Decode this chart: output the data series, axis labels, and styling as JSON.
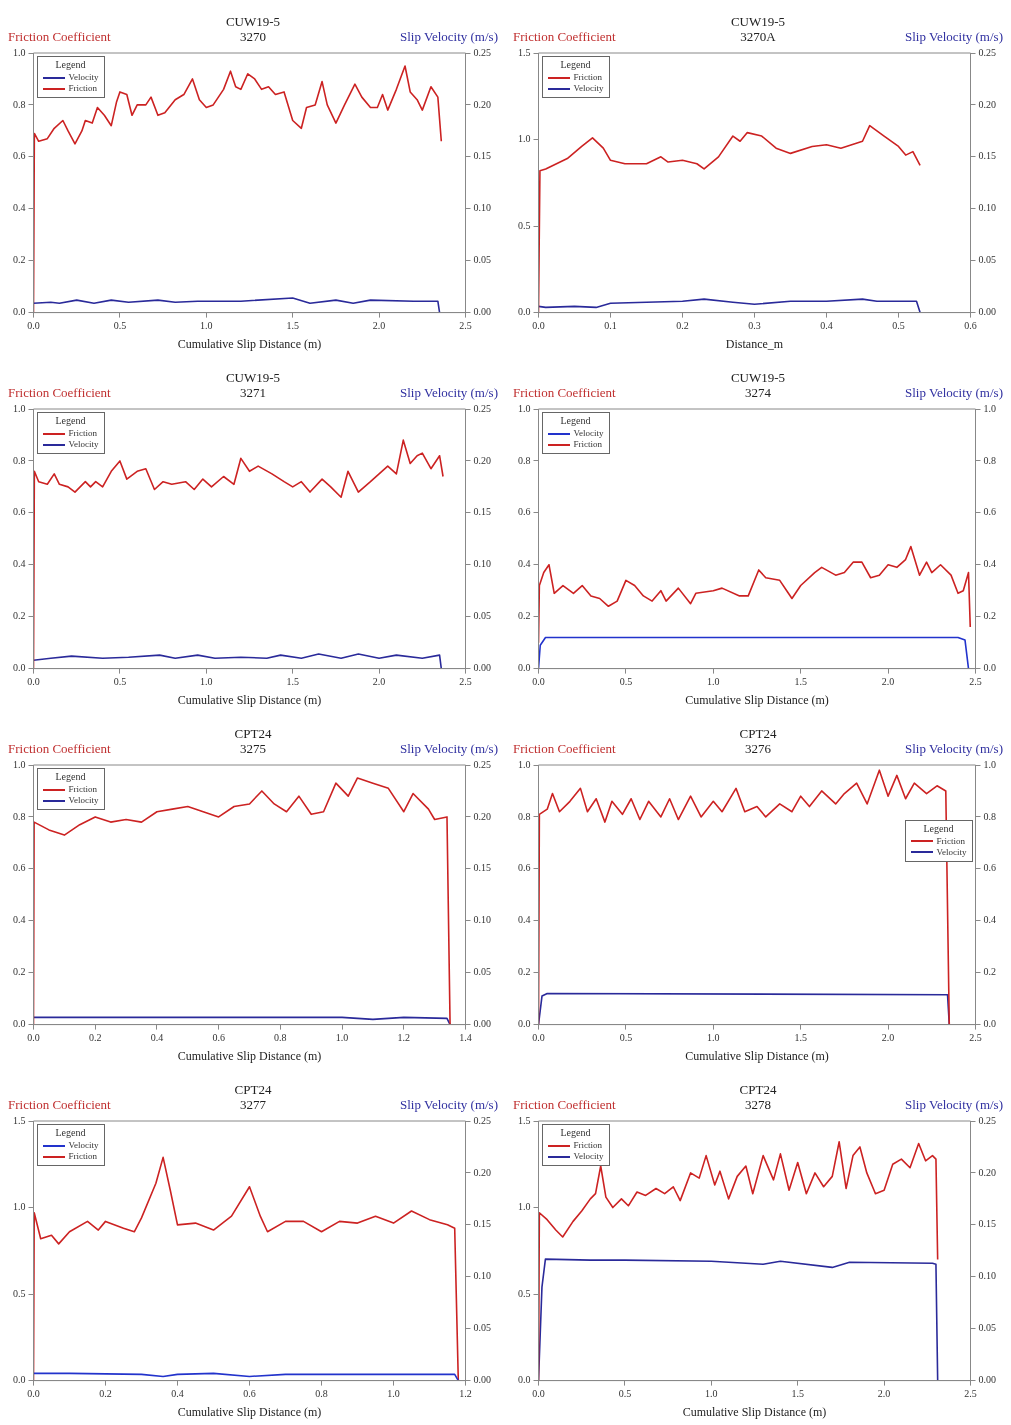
{
  "chart_data": [
    {
      "type": "line",
      "title": "CUW19-5",
      "subtitle": "3270",
      "xlabel": "Cumulative Slip Distance (m)",
      "ylabel": "Friction Coefficient",
      "y2label": "Slip Velocity (m/s)",
      "legend_title": "Legend",
      "legend": "top left",
      "xlim": [
        0,
        2.5
      ],
      "xticks": [
        {
          "value": 0,
          "label": "0.0"
        },
        {
          "value": 0.5,
          "label": "0.5"
        },
        {
          "value": 1,
          "label": "1.0"
        },
        {
          "value": 1.5,
          "label": "1.5"
        },
        {
          "value": 2,
          "label": "2.0"
        },
        {
          "value": 2.5,
          "label": "2.5"
        }
      ],
      "ylim": [
        0,
        1
      ],
      "yticks": [
        {
          "value": 0,
          "label": "0.0"
        },
        {
          "value": 0.2,
          "label": "0.2"
        },
        {
          "value": 0.4,
          "label": "0.4"
        },
        {
          "value": 0.6,
          "label": "0.6"
        },
        {
          "value": 0.8,
          "label": "0.8"
        },
        {
          "value": 1,
          "label": "1.0"
        }
      ],
      "y2lim": [
        0,
        0.25
      ],
      "y2ticks": [
        {
          "value": 0,
          "label": "0.00"
        },
        {
          "value": 0.05,
          "label": "0.05"
        },
        {
          "value": 0.1,
          "label": "0.10"
        },
        {
          "value": 0.15,
          "label": "0.15"
        },
        {
          "value": 0.2,
          "label": "0.20"
        },
        {
          "value": 0.25,
          "label": "0.25"
        }
      ],
      "series": [
        {
          "name": "Velocity",
          "color": "#2a2a9a",
          "axis": "y2",
          "x": [
            0,
            0.1,
            0.15,
            0.25,
            0.35,
            0.45,
            0.55,
            0.72,
            0.82,
            0.95,
            1.2,
            1.5,
            1.6,
            1.75,
            1.85,
            1.95,
            2.2,
            2.34,
            2.35
          ],
          "values": [
            0.009,
            0.01,
            0.009,
            0.012,
            0.009,
            0.012,
            0.01,
            0.012,
            0.01,
            0.011,
            0.011,
            0.014,
            0.009,
            0.012,
            0.009,
            0.012,
            0.011,
            0.011,
            0
          ]
        },
        {
          "name": "Friction",
          "color": "#cc2222",
          "axis": "y",
          "x": [
            0,
            0.005,
            0.03,
            0.08,
            0.12,
            0.17,
            0.2,
            0.24,
            0.28,
            0.3,
            0.34,
            0.37,
            0.41,
            0.45,
            0.48,
            0.5,
            0.54,
            0.57,
            0.6,
            0.65,
            0.68,
            0.72,
            0.76,
            0.82,
            0.87,
            0.92,
            0.96,
            1.0,
            1.04,
            1.1,
            1.14,
            1.17,
            1.2,
            1.24,
            1.28,
            1.32,
            1.36,
            1.4,
            1.45,
            1.5,
            1.55,
            1.58,
            1.63,
            1.67,
            1.7,
            1.75,
            1.8,
            1.86,
            1.9,
            1.95,
            1.99,
            2.02,
            2.05,
            2.1,
            2.15,
            2.18,
            2.22,
            2.25,
            2.3,
            2.34,
            2.36
          ],
          "values": [
            0,
            0.69,
            0.66,
            0.67,
            0.71,
            0.74,
            0.7,
            0.65,
            0.7,
            0.74,
            0.73,
            0.79,
            0.76,
            0.72,
            0.81,
            0.85,
            0.84,
            0.76,
            0.8,
            0.8,
            0.83,
            0.76,
            0.77,
            0.82,
            0.84,
            0.9,
            0.82,
            0.79,
            0.8,
            0.86,
            0.93,
            0.87,
            0.86,
            0.92,
            0.9,
            0.86,
            0.87,
            0.84,
            0.85,
            0.74,
            0.71,
            0.79,
            0.8,
            0.89,
            0.8,
            0.73,
            0.8,
            0.88,
            0.83,
            0.79,
            0.79,
            0.84,
            0.78,
            0.86,
            0.95,
            0.85,
            0.82,
            0.78,
            0.87,
            0.83,
            0.66
          ]
        }
      ]
    },
    {
      "type": "line",
      "title": "CUW19-5",
      "subtitle": "3270A",
      "xlabel": "Distance_m",
      "ylabel": "Friction Coefficient",
      "y2label": "Slip Velocity (m/s)",
      "legend_title": "Legend",
      "legend": "top left",
      "xlim": [
        0,
        0.6
      ],
      "xticks": [
        {
          "value": 0,
          "label": "0.0"
        },
        {
          "value": 0.1,
          "label": "0.1"
        },
        {
          "value": 0.2,
          "label": "0.2"
        },
        {
          "value": 0.3,
          "label": "0.3"
        },
        {
          "value": 0.4,
          "label": "0.4"
        },
        {
          "value": 0.5,
          "label": "0.5"
        },
        {
          "value": 0.6,
          "label": "0.6"
        }
      ],
      "ylim": [
        0,
        1.5
      ],
      "yticks": [
        {
          "value": 0,
          "label": "0.0"
        },
        {
          "value": 0.5,
          "label": "0.5"
        },
        {
          "value": 1,
          "label": "1.0"
        },
        {
          "value": 1.5,
          "label": "1.5"
        }
      ],
      "y2lim": [
        0,
        0.25
      ],
      "y2ticks": [
        {
          "value": 0,
          "label": "0.00"
        },
        {
          "value": 0.05,
          "label": "0.05"
        },
        {
          "value": 0.1,
          "label": "0.10"
        },
        {
          "value": 0.15,
          "label": "0.15"
        },
        {
          "value": 0.2,
          "label": "0.20"
        },
        {
          "value": 0.25,
          "label": "0.25"
        }
      ],
      "series": [
        {
          "name": "Friction",
          "color": "#cc2222",
          "axis": "y",
          "x": [
            0,
            0.002,
            0.01,
            0.02,
            0.04,
            0.06,
            0.075,
            0.09,
            0.1,
            0.12,
            0.15,
            0.17,
            0.18,
            0.2,
            0.22,
            0.23,
            0.25,
            0.27,
            0.28,
            0.29,
            0.31,
            0.33,
            0.35,
            0.38,
            0.4,
            0.42,
            0.45,
            0.46,
            0.48,
            0.5,
            0.51,
            0.52,
            0.53
          ],
          "values": [
            0,
            0.82,
            0.83,
            0.85,
            0.89,
            0.96,
            1.01,
            0.95,
            0.88,
            0.86,
            0.86,
            0.9,
            0.87,
            0.88,
            0.86,
            0.83,
            0.9,
            1.02,
            0.99,
            1.04,
            1.02,
            0.95,
            0.92,
            0.96,
            0.97,
            0.95,
            0.99,
            1.08,
            1.02,
            0.96,
            0.91,
            0.93,
            0.85
          ]
        },
        {
          "name": "Velocity",
          "color": "#2a2a9a",
          "axis": "y2",
          "x": [
            0,
            0.01,
            0.05,
            0.08,
            0.1,
            0.15,
            0.2,
            0.23,
            0.27,
            0.3,
            0.35,
            0.4,
            0.45,
            0.47,
            0.52,
            0.525,
            0.53
          ],
          "values": [
            0.006,
            0.005,
            0.006,
            0.005,
            0.009,
            0.01,
            0.011,
            0.013,
            0.01,
            0.008,
            0.011,
            0.011,
            0.013,
            0.011,
            0.011,
            0.011,
            0
          ]
        }
      ]
    },
    {
      "type": "line",
      "title": "CUW19-5",
      "subtitle": "3271",
      "xlabel": "Cumulative Slip Distance (m)",
      "ylabel": "Friction Coefficient",
      "y2label": "Slip Velocity (m/s)",
      "legend_title": "Legend",
      "legend": "top left",
      "xlim": [
        0,
        2.5
      ],
      "xticks": [
        {
          "value": 0,
          "label": "0.0"
        },
        {
          "value": 0.5,
          "label": "0.5"
        },
        {
          "value": 1,
          "label": "1.0"
        },
        {
          "value": 1.5,
          "label": "1.5"
        },
        {
          "value": 2,
          "label": "2.0"
        },
        {
          "value": 2.5,
          "label": "2.5"
        }
      ],
      "ylim": [
        0,
        1
      ],
      "yticks": [
        {
          "value": 0,
          "label": "0.0"
        },
        {
          "value": 0.2,
          "label": "0.2"
        },
        {
          "value": 0.4,
          "label": "0.4"
        },
        {
          "value": 0.6,
          "label": "0.6"
        },
        {
          "value": 0.8,
          "label": "0.8"
        },
        {
          "value": 1,
          "label": "1.0"
        }
      ],
      "y2lim": [
        0,
        0.25
      ],
      "y2ticks": [
        {
          "value": 0,
          "label": "0.00"
        },
        {
          "value": 0.05,
          "label": "0.05"
        },
        {
          "value": 0.1,
          "label": "0.10"
        },
        {
          "value": 0.15,
          "label": "0.15"
        },
        {
          "value": 0.2,
          "label": "0.20"
        },
        {
          "value": 0.25,
          "label": "0.25"
        }
      ],
      "series": [
        {
          "name": "Friction",
          "color": "#cc2222",
          "axis": "y",
          "x": [
            0,
            0.005,
            0.03,
            0.08,
            0.12,
            0.15,
            0.2,
            0.24,
            0.3,
            0.33,
            0.36,
            0.4,
            0.45,
            0.5,
            0.54,
            0.6,
            0.65,
            0.7,
            0.75,
            0.8,
            0.88,
            0.93,
            0.98,
            1.03,
            1.1,
            1.16,
            1.2,
            1.25,
            1.3,
            1.38,
            1.45,
            1.5,
            1.55,
            1.6,
            1.67,
            1.72,
            1.78,
            1.82,
            1.88,
            1.95,
            2.0,
            2.05,
            2.1,
            2.14,
            2.18,
            2.22,
            2.25,
            2.3,
            2.35,
            2.37
          ],
          "values": [
            0,
            0.76,
            0.72,
            0.71,
            0.75,
            0.71,
            0.7,
            0.68,
            0.72,
            0.7,
            0.72,
            0.7,
            0.76,
            0.8,
            0.73,
            0.76,
            0.77,
            0.69,
            0.72,
            0.71,
            0.72,
            0.69,
            0.73,
            0.7,
            0.74,
            0.71,
            0.81,
            0.76,
            0.78,
            0.75,
            0.72,
            0.7,
            0.72,
            0.68,
            0.73,
            0.7,
            0.66,
            0.76,
            0.68,
            0.72,
            0.75,
            0.78,
            0.75,
            0.88,
            0.79,
            0.82,
            0.83,
            0.77,
            0.82,
            0.74
          ]
        },
        {
          "name": "Velocity",
          "color": "#2a2a9a",
          "axis": "y2",
          "x": [
            0,
            0.1,
            0.22,
            0.4,
            0.55,
            0.73,
            0.82,
            0.95,
            1.05,
            1.2,
            1.35,
            1.43,
            1.55,
            1.65,
            1.78,
            1.88,
            2.0,
            2.1,
            2.25,
            2.35,
            2.36
          ],
          "values": [
            0.008,
            0.01,
            0.012,
            0.01,
            0.011,
            0.013,
            0.01,
            0.013,
            0.01,
            0.011,
            0.01,
            0.013,
            0.01,
            0.014,
            0.01,
            0.014,
            0.01,
            0.013,
            0.01,
            0.013,
            0
          ]
        }
      ]
    },
    {
      "type": "line",
      "title": "CUW19-5",
      "subtitle": "3274",
      "xlabel": "Cumulative Slip Distance (m)",
      "ylabel": "Friction Coefficient",
      "y2label": "Slip Velocity (m/s)",
      "legend_title": "Legend",
      "legend": "top left",
      "xlim": [
        0,
        2.5
      ],
      "xticks": [
        {
          "value": 0,
          "label": "0.0"
        },
        {
          "value": 0.5,
          "label": "0.5"
        },
        {
          "value": 1,
          "label": "1.0"
        },
        {
          "value": 1.5,
          "label": "1.5"
        },
        {
          "value": 2,
          "label": "2.0"
        },
        {
          "value": 2.5,
          "label": "2.5"
        }
      ],
      "ylim": [
        0,
        1
      ],
      "yticks": [
        {
          "value": 0,
          "label": "0.0"
        },
        {
          "value": 0.2,
          "label": "0.2"
        },
        {
          "value": 0.4,
          "label": "0.4"
        },
        {
          "value": 0.6,
          "label": "0.6"
        },
        {
          "value": 0.8,
          "label": "0.8"
        },
        {
          "value": 1,
          "label": "1.0"
        }
      ],
      "y2lim": [
        0,
        1
      ],
      "y2ticks": [
        {
          "value": 0,
          "label": "0.0"
        },
        {
          "value": 0.2,
          "label": "0.2"
        },
        {
          "value": 0.4,
          "label": "0.4"
        },
        {
          "value": 0.6,
          "label": "0.6"
        },
        {
          "value": 0.8,
          "label": "0.8"
        },
        {
          "value": 1,
          "label": "1.0"
        }
      ],
      "series": [
        {
          "name": "Velocity",
          "color": "#2233cc",
          "axis": "y2",
          "x": [
            0,
            0.01,
            0.04,
            2.4,
            2.44,
            2.46
          ],
          "values": [
            0,
            0.09,
            0.12,
            0.12,
            0.11,
            0
          ]
        },
        {
          "name": "Friction",
          "color": "#cc2222",
          "axis": "y",
          "x": [
            0,
            0.005,
            0.03,
            0.06,
            0.09,
            0.14,
            0.2,
            0.25,
            0.3,
            0.35,
            0.4,
            0.45,
            0.5,
            0.55,
            0.6,
            0.65,
            0.7,
            0.73,
            0.8,
            0.87,
            0.9,
            1.0,
            1.05,
            1.15,
            1.2,
            1.26,
            1.3,
            1.38,
            1.42,
            1.45,
            1.5,
            1.58,
            1.62,
            1.7,
            1.75,
            1.8,
            1.85,
            1.9,
            1.95,
            2.0,
            2.05,
            2.1,
            2.13,
            2.18,
            2.22,
            2.25,
            2.3,
            2.36,
            2.4,
            2.43,
            2.46,
            2.47
          ],
          "values": [
            0.1,
            0.32,
            0.37,
            0.4,
            0.29,
            0.32,
            0.29,
            0.32,
            0.28,
            0.27,
            0.24,
            0.26,
            0.34,
            0.32,
            0.28,
            0.26,
            0.3,
            0.26,
            0.31,
            0.25,
            0.29,
            0.3,
            0.31,
            0.28,
            0.28,
            0.38,
            0.35,
            0.34,
            0.3,
            0.27,
            0.32,
            0.37,
            0.39,
            0.36,
            0.37,
            0.41,
            0.41,
            0.35,
            0.36,
            0.4,
            0.39,
            0.42,
            0.47,
            0.36,
            0.41,
            0.37,
            0.4,
            0.36,
            0.29,
            0.3,
            0.37,
            0.16
          ]
        }
      ]
    },
    {
      "type": "line",
      "title": "CPT24",
      "subtitle": "3275",
      "xlabel": "Cumulative Slip Distance (m)",
      "ylabel": "Friction Coefficient",
      "y2label": "Slip Velocity (m/s)",
      "legend_title": "Legend",
      "legend": "top left",
      "xlim": [
        0,
        1.4
      ],
      "xticks": [
        {
          "value": 0,
          "label": "0.0"
        },
        {
          "value": 0.2,
          "label": "0.2"
        },
        {
          "value": 0.4,
          "label": "0.4"
        },
        {
          "value": 0.6,
          "label": "0.6"
        },
        {
          "value": 0.8,
          "label": "0.8"
        },
        {
          "value": 1,
          "label": "1.0"
        },
        {
          "value": 1.2,
          "label": "1.2"
        },
        {
          "value": 1.4,
          "label": "1.4"
        }
      ],
      "ylim": [
        0,
        1
      ],
      "yticks": [
        {
          "value": 0,
          "label": "0.0"
        },
        {
          "value": 0.2,
          "label": "0.2"
        },
        {
          "value": 0.4,
          "label": "0.4"
        },
        {
          "value": 0.6,
          "label": "0.6"
        },
        {
          "value": 0.8,
          "label": "0.8"
        },
        {
          "value": 1,
          "label": "1.0"
        }
      ],
      "y2lim": [
        0,
        0.25
      ],
      "y2ticks": [
        {
          "value": 0,
          "label": "0.00"
        },
        {
          "value": 0.05,
          "label": "0.05"
        },
        {
          "value": 0.1,
          "label": "0.10"
        },
        {
          "value": 0.15,
          "label": "0.15"
        },
        {
          "value": 0.2,
          "label": "0.20"
        },
        {
          "value": 0.25,
          "label": "0.25"
        }
      ],
      "series": [
        {
          "name": "Friction",
          "color": "#cc2222",
          "axis": "y",
          "x": [
            0,
            0.002,
            0.05,
            0.1,
            0.15,
            0.2,
            0.25,
            0.3,
            0.35,
            0.4,
            0.45,
            0.5,
            0.55,
            0.6,
            0.65,
            0.7,
            0.74,
            0.78,
            0.82,
            0.86,
            0.9,
            0.94,
            0.98,
            1.02,
            1.05,
            1.1,
            1.15,
            1.2,
            1.23,
            1.28,
            1.3,
            1.34,
            1.35
          ],
          "values": [
            0,
            0.78,
            0.75,
            0.73,
            0.77,
            0.8,
            0.78,
            0.79,
            0.78,
            0.82,
            0.83,
            0.84,
            0.82,
            0.8,
            0.84,
            0.85,
            0.9,
            0.85,
            0.82,
            0.88,
            0.81,
            0.82,
            0.93,
            0.88,
            0.95,
            0.93,
            0.91,
            0.82,
            0.89,
            0.83,
            0.79,
            0.8,
            0
          ]
        },
        {
          "name": "Velocity",
          "color": "#2a2a9a",
          "axis": "y2",
          "x": [
            0,
            0.2,
            0.3,
            0.6,
            1.0,
            1.1,
            1.2,
            1.34,
            1.35
          ],
          "values": [
            0.007,
            0.007,
            0.007,
            0.007,
            0.007,
            0.005,
            0.007,
            0.006,
            0
          ]
        }
      ]
    },
    {
      "type": "line",
      "title": "CPT24",
      "subtitle": "3276",
      "xlabel": "Cumulative Slip Distance (m)",
      "ylabel": "Friction Coefficient",
      "y2label": "Slip Velocity (m/s)",
      "legend_title": "Legend",
      "legend": "right",
      "xlim": [
        0,
        2.5
      ],
      "xticks": [
        {
          "value": 0,
          "label": "0.0"
        },
        {
          "value": 0.5,
          "label": "0.5"
        },
        {
          "value": 1,
          "label": "1.0"
        },
        {
          "value": 1.5,
          "label": "1.5"
        },
        {
          "value": 2,
          "label": "2.0"
        },
        {
          "value": 2.5,
          "label": "2.5"
        }
      ],
      "ylim": [
        0,
        1
      ],
      "yticks": [
        {
          "value": 0,
          "label": "0.0"
        },
        {
          "value": 0.2,
          "label": "0.2"
        },
        {
          "value": 0.4,
          "label": "0.4"
        },
        {
          "value": 0.6,
          "label": "0.6"
        },
        {
          "value": 0.8,
          "label": "0.8"
        },
        {
          "value": 1,
          "label": "1.0"
        }
      ],
      "y2lim": [
        0,
        1
      ],
      "y2ticks": [
        {
          "value": 0,
          "label": "0.0"
        },
        {
          "value": 0.2,
          "label": "0.2"
        },
        {
          "value": 0.4,
          "label": "0.4"
        },
        {
          "value": 0.6,
          "label": "0.6"
        },
        {
          "value": 0.8,
          "label": "0.8"
        },
        {
          "value": 1,
          "label": "1.0"
        }
      ],
      "series": [
        {
          "name": "Friction",
          "color": "#cc2222",
          "axis": "y",
          "x": [
            0,
            0.005,
            0.05,
            0.08,
            0.12,
            0.18,
            0.24,
            0.28,
            0.33,
            0.38,
            0.42,
            0.48,
            0.53,
            0.58,
            0.63,
            0.7,
            0.75,
            0.8,
            0.87,
            0.93,
            1.0,
            1.05,
            1.13,
            1.18,
            1.25,
            1.3,
            1.38,
            1.45,
            1.5,
            1.55,
            1.62,
            1.7,
            1.75,
            1.82,
            1.88,
            1.95,
            2.0,
            2.05,
            2.1,
            2.15,
            2.22,
            2.28,
            2.33,
            2.35
          ],
          "values": [
            0,
            0.81,
            0.83,
            0.89,
            0.82,
            0.86,
            0.91,
            0.82,
            0.87,
            0.78,
            0.86,
            0.81,
            0.87,
            0.79,
            0.86,
            0.8,
            0.87,
            0.79,
            0.88,
            0.8,
            0.86,
            0.82,
            0.91,
            0.82,
            0.84,
            0.8,
            0.85,
            0.82,
            0.88,
            0.84,
            0.9,
            0.85,
            0.89,
            0.93,
            0.85,
            0.98,
            0.88,
            0.96,
            0.87,
            0.93,
            0.89,
            0.92,
            0.9,
            0
          ]
        },
        {
          "name": "Velocity",
          "color": "#2a2a9a",
          "axis": "y2",
          "x": [
            0,
            0.02,
            0.05,
            2.34,
            2.35
          ],
          "values": [
            0,
            0.11,
            0.12,
            0.115,
            0
          ]
        }
      ]
    },
    {
      "type": "line",
      "title": "CPT24",
      "subtitle": "3277",
      "xlabel": "Cumulative Slip Distance (m)",
      "ylabel": "Friction Coefficient",
      "y2label": "Slip Velocity (m/s)",
      "legend_title": "Legend",
      "legend": "top left",
      "xlim": [
        0,
        1.2
      ],
      "xticks": [
        {
          "value": 0,
          "label": "0.0"
        },
        {
          "value": 0.2,
          "label": "0.2"
        },
        {
          "value": 0.4,
          "label": "0.4"
        },
        {
          "value": 0.6,
          "label": "0.6"
        },
        {
          "value": 0.8,
          "label": "0.8"
        },
        {
          "value": 1,
          "label": "1.0"
        },
        {
          "value": 1.2,
          "label": "1.2"
        }
      ],
      "ylim": [
        0,
        1.5
      ],
      "yticks": [
        {
          "value": 0,
          "label": "0.0"
        },
        {
          "value": 0.5,
          "label": "0.5"
        },
        {
          "value": 1,
          "label": "1.0"
        },
        {
          "value": 1.5,
          "label": "1.5"
        }
      ],
      "y2lim": [
        0,
        0.25
      ],
      "y2ticks": [
        {
          "value": 0,
          "label": "0.00"
        },
        {
          "value": 0.05,
          "label": "0.05"
        },
        {
          "value": 0.1,
          "label": "0.10"
        },
        {
          "value": 0.15,
          "label": "0.15"
        },
        {
          "value": 0.2,
          "label": "0.20"
        },
        {
          "value": 0.25,
          "label": "0.25"
        }
      ],
      "series": [
        {
          "name": "Velocity",
          "color": "#2233cc",
          "axis": "y2",
          "x": [
            0,
            0.1,
            0.3,
            0.36,
            0.4,
            0.5,
            0.6,
            0.7,
            1.0,
            1.17,
            1.18
          ],
          "values": [
            0.007,
            0.007,
            0.006,
            0.004,
            0.006,
            0.007,
            0.004,
            0.006,
            0.006,
            0.006,
            0
          ]
        },
        {
          "name": "Friction",
          "color": "#cc2222",
          "axis": "y",
          "x": [
            0,
            0.002,
            0.02,
            0.05,
            0.07,
            0.1,
            0.15,
            0.18,
            0.2,
            0.25,
            0.28,
            0.3,
            0.34,
            0.36,
            0.38,
            0.4,
            0.45,
            0.5,
            0.55,
            0.6,
            0.63,
            0.65,
            0.7,
            0.75,
            0.8,
            0.85,
            0.9,
            0.95,
            1.0,
            1.05,
            1.1,
            1.15,
            1.17,
            1.18
          ],
          "values": [
            0,
            0.97,
            0.82,
            0.84,
            0.79,
            0.86,
            0.92,
            0.87,
            0.92,
            0.88,
            0.86,
            0.94,
            1.14,
            1.29,
            1.1,
            0.9,
            0.91,
            0.87,
            0.95,
            1.12,
            0.95,
            0.86,
            0.92,
            0.92,
            0.86,
            0.92,
            0.91,
            0.95,
            0.91,
            0.98,
            0.93,
            0.9,
            0.88,
            0
          ]
        }
      ]
    },
    {
      "type": "line",
      "title": "CPT24",
      "subtitle": "3278",
      "xlabel": "Cumulative Slip Distance (m)",
      "ylabel": "Friction Coefficient",
      "y2label": "Slip Velocity (m/s)",
      "legend_title": "Legend",
      "legend": "top left",
      "xlim": [
        0,
        2.5
      ],
      "xticks": [
        {
          "value": 0,
          "label": "0.0"
        },
        {
          "value": 0.5,
          "label": "0.5"
        },
        {
          "value": 1,
          "label": "1.0"
        },
        {
          "value": 1.5,
          "label": "1.5"
        },
        {
          "value": 2,
          "label": "2.0"
        },
        {
          "value": 2.5,
          "label": "2.5"
        }
      ],
      "ylim": [
        0,
        1.5
      ],
      "yticks": [
        {
          "value": 0,
          "label": "0.0"
        },
        {
          "value": 0.5,
          "label": "0.5"
        },
        {
          "value": 1,
          "label": "1.0"
        },
        {
          "value": 1.5,
          "label": "1.5"
        }
      ],
      "y2lim": [
        0,
        0.25
      ],
      "y2ticks": [
        {
          "value": 0,
          "label": "0.00"
        },
        {
          "value": 0.05,
          "label": "0.05"
        },
        {
          "value": 0.1,
          "label": "0.10"
        },
        {
          "value": 0.15,
          "label": "0.15"
        },
        {
          "value": 0.2,
          "label": "0.20"
        },
        {
          "value": 0.25,
          "label": "0.25"
        }
      ],
      "series": [
        {
          "name": "Friction",
          "color": "#cc2222",
          "axis": "y",
          "x": [
            0,
            0.005,
            0.05,
            0.1,
            0.14,
            0.2,
            0.25,
            0.3,
            0.33,
            0.36,
            0.39,
            0.43,
            0.48,
            0.52,
            0.57,
            0.62,
            0.68,
            0.73,
            0.78,
            0.82,
            0.88,
            0.93,
            0.97,
            1.02,
            1.05,
            1.1,
            1.15,
            1.2,
            1.24,
            1.3,
            1.36,
            1.4,
            1.45,
            1.5,
            1.55,
            1.6,
            1.65,
            1.7,
            1.74,
            1.78,
            1.82,
            1.86,
            1.9,
            1.95,
            2.0,
            2.05,
            2.1,
            2.15,
            2.2,
            2.24,
            2.28,
            2.3,
            2.31
          ],
          "values": [
            0,
            0.97,
            0.93,
            0.87,
            0.83,
            0.92,
            0.98,
            1.05,
            1.08,
            1.24,
            1.06,
            1.0,
            1.05,
            1.01,
            1.09,
            1.07,
            1.11,
            1.08,
            1.12,
            1.04,
            1.2,
            1.17,
            1.3,
            1.13,
            1.21,
            1.05,
            1.18,
            1.24,
            1.08,
            1.3,
            1.16,
            1.31,
            1.1,
            1.26,
            1.08,
            1.2,
            1.12,
            1.18,
            1.38,
            1.11,
            1.3,
            1.35,
            1.2,
            1.08,
            1.1,
            1.25,
            1.28,
            1.23,
            1.37,
            1.27,
            1.3,
            1.28,
            0.7
          ]
        },
        {
          "name": "Velocity",
          "color": "#2a2a9a",
          "axis": "y2",
          "x": [
            0,
            0.02,
            0.04,
            0.3,
            0.5,
            1.0,
            1.3,
            1.4,
            1.7,
            1.8,
            2.28,
            2.3,
            2.31
          ],
          "values": [
            0,
            0.09,
            0.117,
            0.116,
            0.116,
            0.115,
            0.112,
            0.115,
            0.109,
            0.114,
            0.113,
            0.112,
            0
          ]
        }
      ]
    }
  ]
}
